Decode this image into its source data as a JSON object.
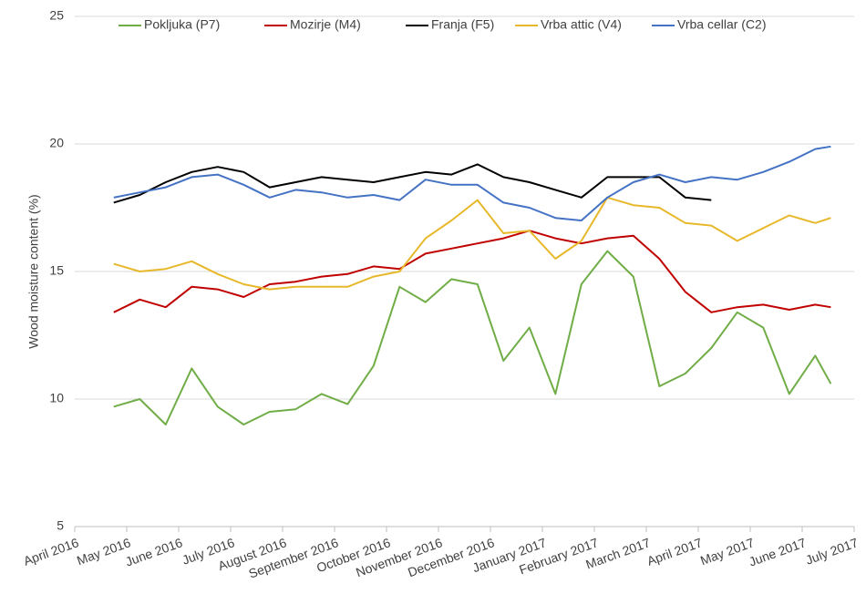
{
  "chart_data": {
    "type": "line",
    "y_label": "Wood moisture content (%)",
    "x": [
      0.75,
      1.25,
      1.75,
      2.25,
      2.75,
      3.25,
      3.75,
      4.25,
      4.75,
      5.25,
      5.75,
      6.25,
      6.75,
      7.25,
      7.75,
      8.25,
      8.75,
      9.25,
      9.75,
      10.25,
      10.75,
      11.25,
      11.75,
      12.25,
      12.75,
      13.25,
      13.75,
      14.25,
      14.55
    ],
    "xlim": [
      0,
      15
    ],
    "xticks": [
      {
        "value": 0,
        "label": "April 2016"
      },
      {
        "value": 1,
        "label": "May 2016"
      },
      {
        "value": 2,
        "label": "June 2016"
      },
      {
        "value": 3,
        "label": "July 2016"
      },
      {
        "value": 4,
        "label": "August 2016"
      },
      {
        "value": 5,
        "label": "September 2016"
      },
      {
        "value": 6,
        "label": "October 2016"
      },
      {
        "value": 7,
        "label": "November 2016"
      },
      {
        "value": 8,
        "label": "December 2016"
      },
      {
        "value": 9,
        "label": "January 2017"
      },
      {
        "value": 10,
        "label": "February 2017"
      },
      {
        "value": 11,
        "label": "March 2017"
      },
      {
        "value": 12,
        "label": "April 2017"
      },
      {
        "value": 13,
        "label": "May 2017"
      },
      {
        "value": 14,
        "label": "June 2017"
      },
      {
        "value": 15,
        "label": "July 2017"
      }
    ],
    "ylim": [
      5,
      25
    ],
    "yticks": [
      5,
      10,
      15,
      20,
      25
    ],
    "grid": true,
    "legend": "top",
    "series": [
      {
        "name": "Pokljuka (P7)",
        "color": "#70ad47",
        "values": [
          9.7,
          10.0,
          9.0,
          11.2,
          9.7,
          9.0,
          9.5,
          9.6,
          10.2,
          9.8,
          11.3,
          14.4,
          13.8,
          14.7,
          14.5,
          11.5,
          12.8,
          10.2,
          14.5,
          15.8,
          14.8,
          10.5,
          11.0,
          12.0,
          13.4,
          12.8,
          10.2,
          11.7,
          10.6
        ]
      },
      {
        "name": "Mozirje (M4)",
        "color": "#c00000",
        "values": [
          13.4,
          13.9,
          13.6,
          14.4,
          14.3,
          14.0,
          14.5,
          14.6,
          14.8,
          14.9,
          15.2,
          15.1,
          15.7,
          15.9,
          16.1,
          16.3,
          16.6,
          16.3,
          16.1,
          16.3,
          16.4,
          15.5,
          14.2,
          13.4,
          13.6,
          13.7,
          13.5,
          13.7,
          13.6
        ]
      },
      {
        "name": "Franja (F5)",
        "color": "#000000",
        "values": [
          17.7,
          18.0,
          18.5,
          18.9,
          19.1,
          18.9,
          18.3,
          18.5,
          18.7,
          18.6,
          18.5,
          18.7,
          18.9,
          18.8,
          19.2,
          18.7,
          18.5,
          18.2,
          17.9,
          18.7,
          18.7,
          18.7,
          17.9,
          17.8,
          null,
          null,
          null,
          null,
          null
        ]
      },
      {
        "name": "Vrba attic (V4)",
        "color": "#e8b82b",
        "values": [
          15.3,
          15.0,
          15.1,
          15.4,
          14.9,
          14.5,
          14.3,
          14.4,
          14.4,
          14.4,
          14.8,
          15.0,
          16.3,
          17.0,
          17.8,
          16.5,
          16.6,
          15.5,
          16.2,
          17.9,
          17.6,
          17.5,
          16.9,
          16.8,
          16.2,
          16.7,
          17.2,
          16.9,
          17.1
        ]
      },
      {
        "name": "Vrba cellar (C2)",
        "color": "#4472c4",
        "values": [
          17.9,
          18.1,
          18.3,
          18.7,
          18.8,
          18.4,
          17.9,
          18.2,
          18.1,
          17.9,
          18.0,
          17.8,
          18.6,
          18.4,
          18.4,
          17.7,
          17.5,
          17.1,
          17.0,
          17.9,
          18.5,
          18.8,
          18.5,
          18.7,
          18.6,
          18.9,
          19.3,
          19.8,
          19.9
        ]
      }
    ]
  }
}
